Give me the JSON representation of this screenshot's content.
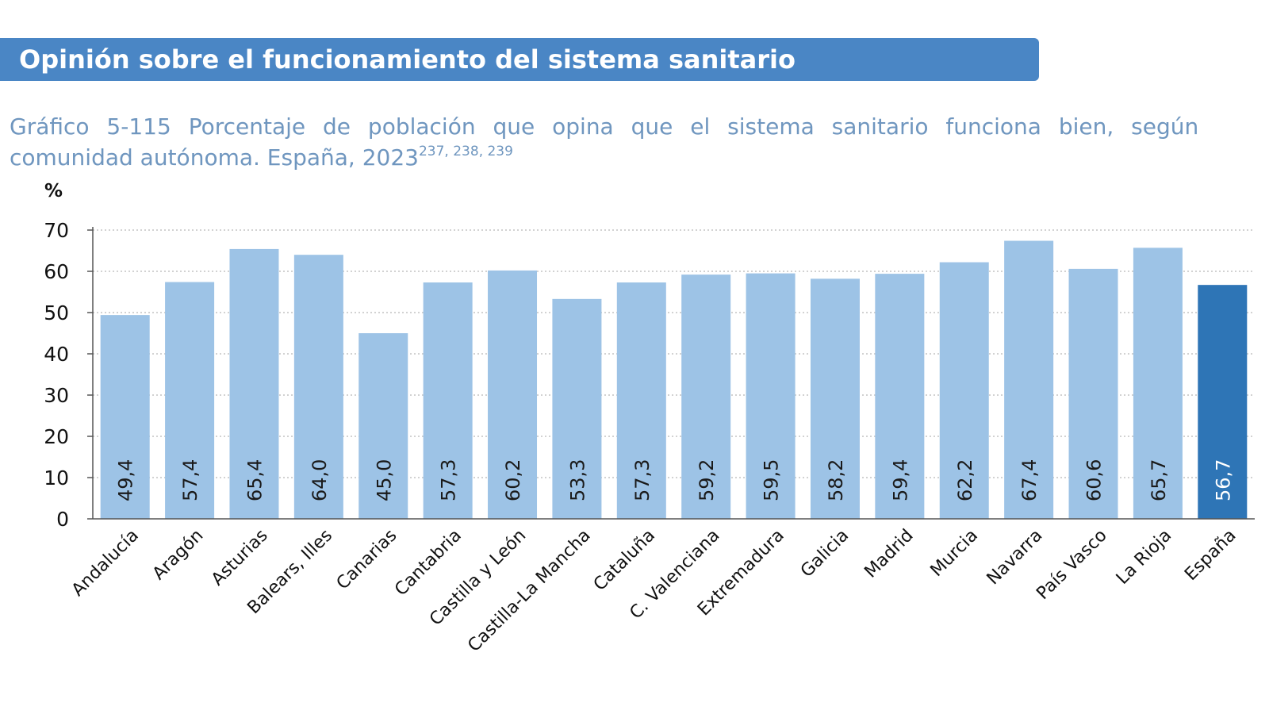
{
  "header": {
    "title": "Opinión sobre el funcionamiento del sistema sanitario"
  },
  "caption": {
    "line1": "Gráfico 5-115 Porcentaje de población que opina que el sistema sanitario funciona bien, según",
    "line2": "comunidad autónoma. España, 2023",
    "superscript": "237, 238, 239"
  },
  "colors": {
    "banner": "#4a86c5",
    "bar": "#9dc3e6",
    "bar_highlight": "#2e75b6",
    "caption_text": "#6f96bf"
  },
  "chart_data": {
    "type": "bar",
    "ylabel": "%",
    "ylim": [
      0,
      70
    ],
    "yticks": [
      0,
      10,
      20,
      30,
      40,
      50,
      60,
      70
    ],
    "grid": "horizontal dotted",
    "highlight_category": "España",
    "categories": [
      "Andalucía",
      "Aragón",
      "Asturias",
      "Balears, Illes",
      "Canarias",
      "Cantabria",
      "Castilla y León",
      "Castilla-La Mancha",
      "Cataluña",
      "C. Valenciana",
      "Extremadura",
      "Galicia",
      "Madrid",
      "Murcia",
      "Navarra",
      "País Vasco",
      "La Rioja",
      "España"
    ],
    "values": [
      49.4,
      57.4,
      65.4,
      64.0,
      45.0,
      57.3,
      60.2,
      53.3,
      57.3,
      59.2,
      59.5,
      58.2,
      59.4,
      62.2,
      67.4,
      60.6,
      65.7,
      56.7
    ],
    "value_labels": [
      "49,4",
      "57,4",
      "65,4",
      "64,0",
      "45,0",
      "57,3",
      "60,2",
      "53,3",
      "57,3",
      "59,2",
      "59,5",
      "58,2",
      "59,4",
      "62,2",
      "67,4",
      "60,6",
      "65,7",
      "56,7"
    ]
  }
}
